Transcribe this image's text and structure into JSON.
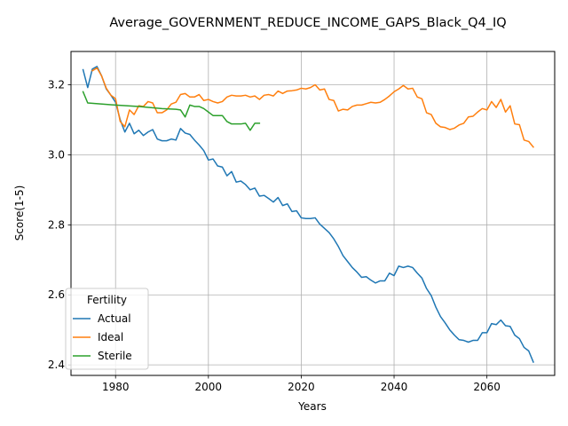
{
  "chart_data": {
    "type": "line",
    "title": "Average_GOVERNMENT_REDUCE_INCOME_GAPS_Black_Q4_IQ",
    "xlabel": "Years",
    "ylabel": "Score(1-5)",
    "xlim": [
      1970.4,
      2074.6
    ],
    "ylim": [
      2.37,
      3.295
    ],
    "xticks": [
      1980,
      2000,
      2020,
      2040,
      2060
    ],
    "yticks": [
      2.4,
      2.6,
      2.8,
      3.0,
      3.2
    ],
    "xtick_labels": [
      "1980",
      "2000",
      "2020",
      "2040",
      "2060"
    ],
    "ytick_labels": [
      "2.4",
      "2.6",
      "2.8",
      "3.0",
      "3.2"
    ],
    "grid": true,
    "legend": {
      "title": "Fertility",
      "placement": "lower-left"
    },
    "series": [
      {
        "name": "Actual",
        "color": "#1f77b4",
        "x": [
          1973,
          1974,
          1975,
          1976,
          1977,
          1978,
          1979,
          1980,
          1981,
          1982,
          1983,
          1984,
          1985,
          1986,
          1987,
          1988,
          1989,
          1990,
          1991,
          1992,
          1993,
          1994,
          1995,
          1996,
          1997,
          1998,
          1999,
          2000,
          2001,
          2002,
          2003,
          2004,
          2005,
          2006,
          2007,
          2008,
          2009,
          2010,
          2011,
          2012,
          2013,
          2014,
          2015,
          2016,
          2017,
          2018,
          2019,
          2020,
          2021,
          2022,
          2023,
          2024,
          2025,
          2026,
          2027,
          2028,
          2029,
          2030,
          2031,
          2032,
          2033,
          2034,
          2035,
          2036,
          2037,
          2038,
          2039,
          2040,
          2041,
          2042,
          2043,
          2044,
          2045,
          2046,
          2047,
          2048,
          2049,
          2050,
          2051,
          2052,
          2053,
          2054,
          2055,
          2056,
          2057,
          2058,
          2059,
          2060,
          2061,
          2062,
          2063,
          2064,
          2065,
          2066,
          2067,
          2068,
          2069,
          2070
        ],
        "y": [
          3.243,
          3.192,
          3.245,
          3.252,
          3.225,
          3.188,
          3.17,
          3.15,
          3.1,
          3.065,
          3.09,
          3.06,
          3.07,
          3.055,
          3.065,
          3.072,
          3.045,
          3.04,
          3.04,
          3.045,
          3.042,
          3.075,
          3.062,
          3.058,
          3.042,
          3.028,
          3.012,
          2.985,
          2.988,
          2.968,
          2.965,
          2.94,
          2.952,
          2.922,
          2.925,
          2.915,
          2.9,
          2.905,
          2.882,
          2.884,
          2.875,
          2.865,
          2.878,
          2.855,
          2.86,
          2.838,
          2.84,
          2.82,
          2.818,
          2.818,
          2.82,
          2.802,
          2.79,
          2.778,
          2.76,
          2.738,
          2.712,
          2.695,
          2.678,
          2.665,
          2.65,
          2.652,
          2.642,
          2.634,
          2.64,
          2.64,
          2.662,
          2.655,
          2.682,
          2.678,
          2.682,
          2.678,
          2.662,
          2.648,
          2.618,
          2.598,
          2.565,
          2.538,
          2.52,
          2.5,
          2.485,
          2.472,
          2.47,
          2.465,
          2.47,
          2.47,
          2.492,
          2.492,
          2.518,
          2.515,
          2.528,
          2.512,
          2.51,
          2.485,
          2.475,
          2.45,
          2.44,
          2.408
        ]
      },
      {
        "name": "Ideal",
        "color": "#ff7f0e",
        "x": [
          1975,
          1976,
          1977,
          1978,
          1979,
          1980,
          1981,
          1982,
          1983,
          1984,
          1985,
          1986,
          1987,
          1988,
          1989,
          1990,
          1991,
          1992,
          1993,
          1994,
          1995,
          1996,
          1997,
          1998,
          1999,
          2000,
          2001,
          2002,
          2003,
          2004,
          2005,
          2006,
          2007,
          2008,
          2009,
          2010,
          2011,
          2012,
          2013,
          2014,
          2015,
          2016,
          2017,
          2018,
          2019,
          2020,
          2021,
          2022,
          2023,
          2024,
          2025,
          2026,
          2027,
          2028,
          2029,
          2030,
          2031,
          2032,
          2033,
          2034,
          2035,
          2036,
          2037,
          2038,
          2039,
          2040,
          2041,
          2042,
          2043,
          2044,
          2045,
          2046,
          2047,
          2048,
          2049,
          2050,
          2051,
          2052,
          2053,
          2054,
          2055,
          2056,
          2057,
          2058,
          2059,
          2060,
          2061,
          2062,
          2063,
          2064,
          2065,
          2066,
          2067,
          2068,
          2069,
          2070
        ],
        "y": [
          3.24,
          3.248,
          3.225,
          3.19,
          3.17,
          3.16,
          3.095,
          3.08,
          3.128,
          3.115,
          3.14,
          3.138,
          3.152,
          3.148,
          3.12,
          3.12,
          3.128,
          3.145,
          3.15,
          3.172,
          3.175,
          3.165,
          3.165,
          3.172,
          3.155,
          3.158,
          3.152,
          3.148,
          3.152,
          3.165,
          3.17,
          3.168,
          3.168,
          3.17,
          3.165,
          3.168,
          3.158,
          3.17,
          3.172,
          3.168,
          3.182,
          3.175,
          3.182,
          3.183,
          3.185,
          3.19,
          3.188,
          3.192,
          3.2,
          3.185,
          3.188,
          3.158,
          3.155,
          3.125,
          3.13,
          3.128,
          3.138,
          3.142,
          3.142,
          3.146,
          3.15,
          3.148,
          3.15,
          3.158,
          3.168,
          3.18,
          3.188,
          3.198,
          3.188,
          3.19,
          3.165,
          3.16,
          3.12,
          3.115,
          3.09,
          3.08,
          3.078,
          3.072,
          3.076,
          3.085,
          3.09,
          3.108,
          3.11,
          3.122,
          3.132,
          3.128,
          3.152,
          3.135,
          3.158,
          3.122,
          3.14,
          3.088,
          3.086,
          3.042,
          3.038,
          3.022
        ]
      },
      {
        "name": "Sterile",
        "color": "#2ca02c",
        "x": [
          1973,
          1974,
          1980,
          1985,
          1990,
          1993,
          1994,
          1995,
          1996,
          1997,
          1998,
          1999,
          2000,
          2001,
          2002,
          2003,
          2004,
          2005,
          2006,
          2007,
          2008,
          2009,
          2010,
          2011
        ],
        "y": [
          3.18,
          3.148,
          3.142,
          3.138,
          3.132,
          3.13,
          3.128,
          3.108,
          3.142,
          3.138,
          3.138,
          3.132,
          3.122,
          3.112,
          3.112,
          3.112,
          3.095,
          3.088,
          3.088,
          3.088,
          3.09,
          3.07,
          3.09,
          3.09
        ]
      }
    ]
  }
}
